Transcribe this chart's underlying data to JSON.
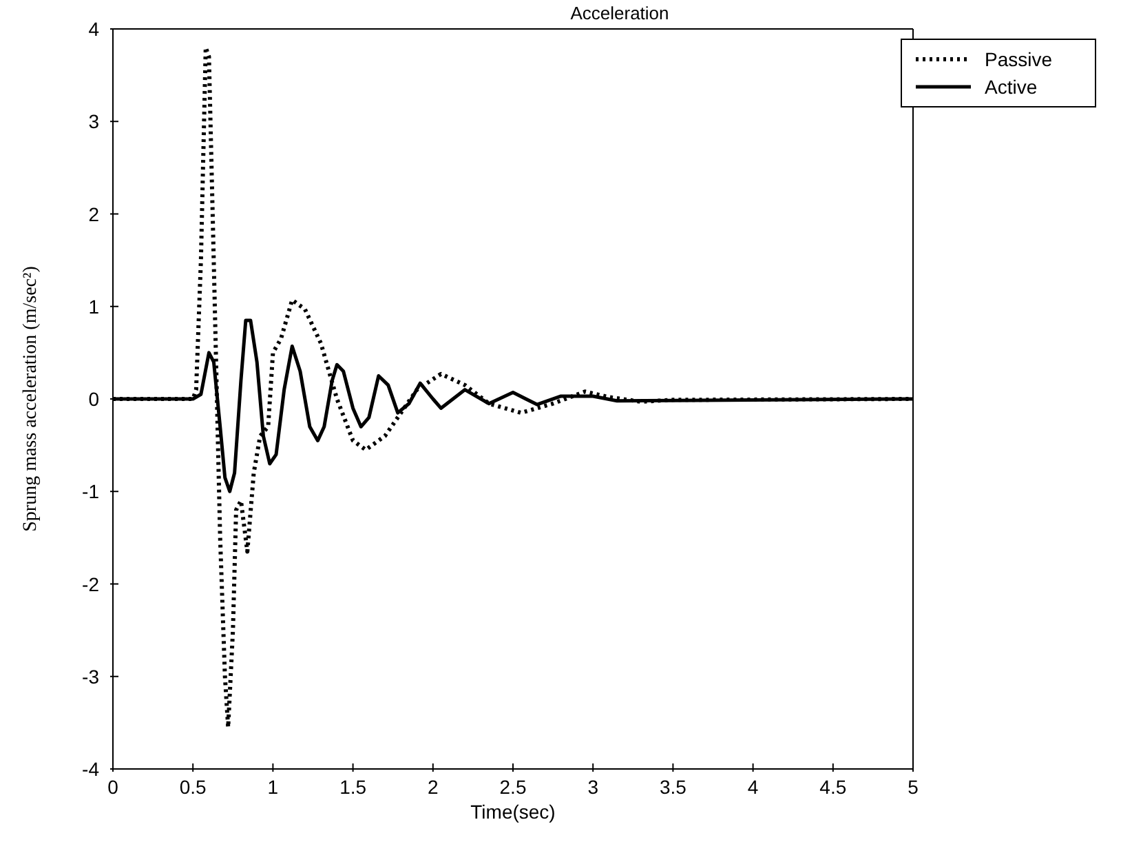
{
  "chart_data": {
    "type": "line",
    "title": "Acceleration",
    "xlabel": "Time(sec)",
    "ylabel": "Sprung mass acceleration (m/sec²)",
    "xlim": [
      0,
      5
    ],
    "ylim": [
      -4,
      4
    ],
    "xticks": [
      0,
      0.5,
      1,
      1.5,
      2,
      2.5,
      3,
      3.5,
      4,
      4.5,
      5
    ],
    "yticks": [
      -4,
      -3,
      -2,
      -1,
      0,
      1,
      2,
      3,
      4
    ],
    "grid": false,
    "legend": "top right",
    "marker": "none",
    "series": [
      {
        "name": "Passive",
        "color": "#000000",
        "line_style": "dotted",
        "x": [
          0,
          0.5,
          0.52,
          0.55,
          0.58,
          0.6,
          0.63,
          0.67,
          0.7,
          0.72,
          0.75,
          0.77,
          0.8,
          0.84,
          0.88,
          0.92,
          0.97,
          1.0,
          1.05,
          1.12,
          1.2,
          1.3,
          1.4,
          1.5,
          1.58,
          1.7,
          1.8,
          1.9,
          2.05,
          2.2,
          2.35,
          2.55,
          2.75,
          2.95,
          3.1,
          3.3,
          3.5,
          5
        ],
        "values": [
          0,
          0,
          0.1,
          1.5,
          3.8,
          3.7,
          1.5,
          -1.5,
          -3.0,
          -3.55,
          -2.5,
          -1.2,
          -1.1,
          -1.65,
          -0.8,
          -0.4,
          -0.3,
          0.5,
          0.65,
          1.07,
          0.97,
          0.6,
          0.0,
          -0.45,
          -0.55,
          -0.4,
          -0.15,
          0.1,
          0.27,
          0.15,
          -0.05,
          -0.15,
          -0.05,
          0.08,
          0.02,
          -0.03,
          -0.01,
          0
        ]
      },
      {
        "name": "Active",
        "color": "#000000",
        "line_style": "solid",
        "x": [
          0,
          0.5,
          0.55,
          0.6,
          0.63,
          0.67,
          0.7,
          0.73,
          0.76,
          0.8,
          0.83,
          0.86,
          0.9,
          0.94,
          0.98,
          1.02,
          1.07,
          1.12,
          1.17,
          1.23,
          1.28,
          1.32,
          1.37,
          1.4,
          1.44,
          1.5,
          1.55,
          1.6,
          1.66,
          1.72,
          1.78,
          1.85,
          1.92,
          2.0,
          2.05,
          2.2,
          2.35,
          2.5,
          2.65,
          2.8,
          3.0,
          3.15,
          5
        ],
        "values": [
          0,
          0,
          0.05,
          0.5,
          0.4,
          -0.3,
          -0.85,
          -1.0,
          -0.8,
          0.2,
          0.85,
          0.85,
          0.4,
          -0.4,
          -0.7,
          -0.6,
          0.1,
          0.57,
          0.3,
          -0.3,
          -0.45,
          -0.3,
          0.2,
          0.37,
          0.3,
          -0.1,
          -0.3,
          -0.2,
          0.25,
          0.15,
          -0.15,
          -0.05,
          0.17,
          0.0,
          -0.1,
          0.1,
          -0.05,
          0.07,
          -0.06,
          0.03,
          0.03,
          -0.02,
          0
        ]
      }
    ]
  }
}
